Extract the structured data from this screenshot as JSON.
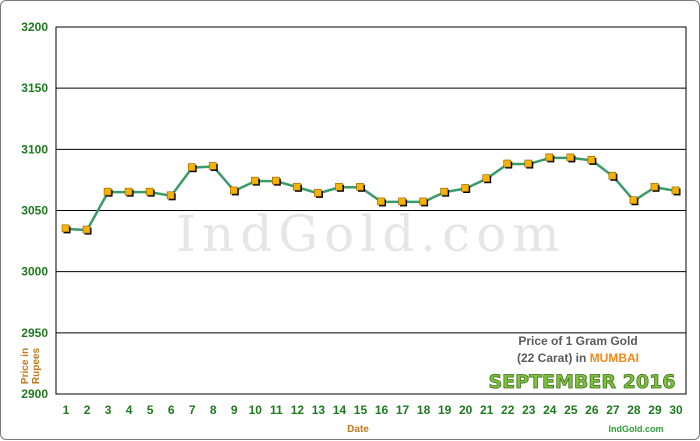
{
  "chart_data": {
    "type": "line",
    "x": [
      1,
      2,
      3,
      4,
      5,
      6,
      7,
      8,
      9,
      10,
      11,
      12,
      13,
      14,
      15,
      16,
      17,
      18,
      19,
      20,
      21,
      22,
      23,
      24,
      25,
      26,
      27,
      28,
      29,
      30
    ],
    "values": [
      3035,
      3034,
      3065,
      3065,
      3065,
      3062,
      3085,
      3086,
      3066,
      3074,
      3074,
      3069,
      3064,
      3069,
      3069,
      3057,
      3057,
      3057,
      3065,
      3068,
      3076,
      3088,
      3088,
      3093,
      3093,
      3091,
      3078,
      3058,
      3069,
      3066
    ],
    "ylim": [
      2900,
      3200
    ],
    "yticks": [
      2900,
      2950,
      3000,
      3050,
      3100,
      3150,
      3200
    ],
    "xlabel": "Date",
    "ylabel_line1": "Price in",
    "ylabel_line2": "Rupees",
    "grid": true,
    "line_color": "#3a9a6a",
    "marker_color": "#f6b400"
  },
  "watermark": "IndGold.com",
  "legend": {
    "line1": "Price of 1 Gram Gold",
    "line2_prefix": "(22 Carat) in ",
    "city": "MUMBAI",
    "month": "SEPTEMBER 2016"
  },
  "footer": "IndGold.com"
}
